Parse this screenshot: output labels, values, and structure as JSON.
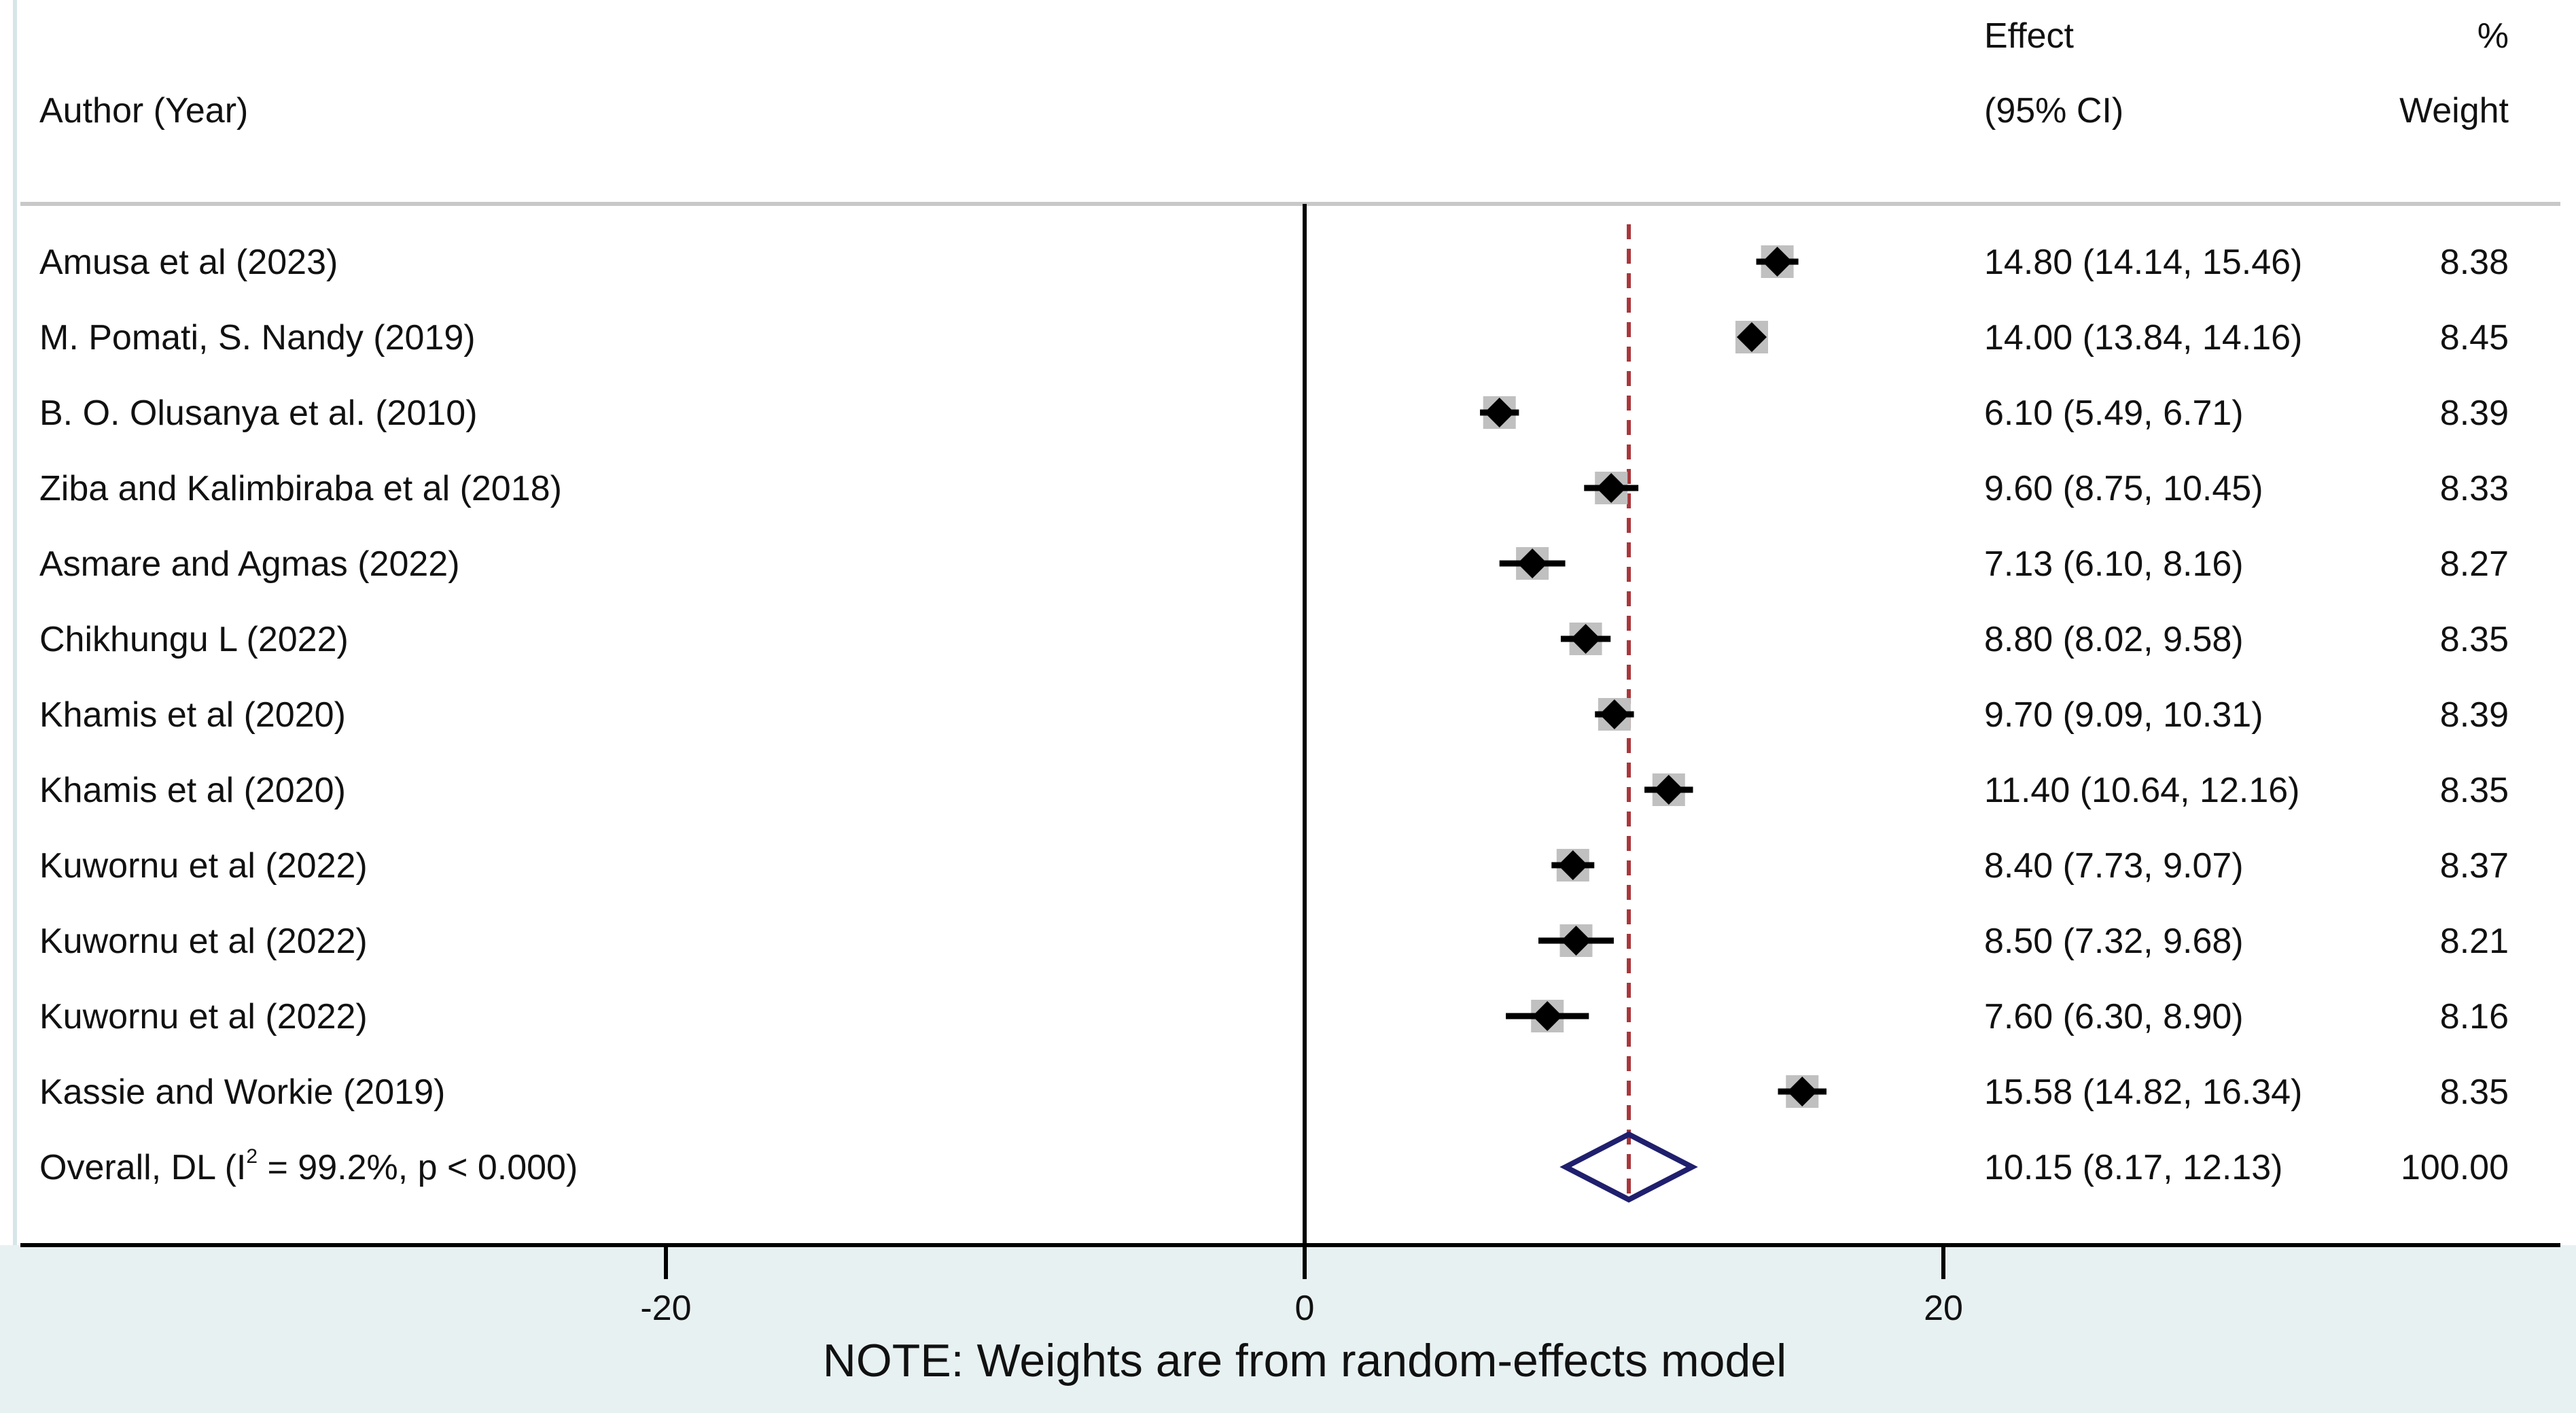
{
  "chart_data": {
    "type": "forest",
    "header": {
      "author": "Author (Year)",
      "effect_line1": "Effect",
      "effect_line2": "(95% CI)",
      "weight_line1": "%",
      "weight_line2": "Weight"
    },
    "studies": [
      {
        "label": "Amusa et al (2023)",
        "effect": 14.8,
        "lo": 14.14,
        "hi": 15.46,
        "ci_text": "14.80 (14.14, 15.46)",
        "weight": "8.38"
      },
      {
        "label": "M. Pomati, S. Nandy (2019)",
        "effect": 14.0,
        "lo": 13.84,
        "hi": 14.16,
        "ci_text": "14.00 (13.84, 14.16)",
        "weight": "8.45"
      },
      {
        "label": "B. O. Olusanya et al. (2010)",
        "effect": 6.1,
        "lo": 5.49,
        "hi": 6.71,
        "ci_text": "6.10 (5.49, 6.71)",
        "weight": "8.39"
      },
      {
        "label": "Ziba and Kalimbiraba et al (2018)",
        "effect": 9.6,
        "lo": 8.75,
        "hi": 10.45,
        "ci_text": "9.60 (8.75, 10.45)",
        "weight": "8.33"
      },
      {
        "label": "Asmare and Agmas (2022)",
        "effect": 7.13,
        "lo": 6.1,
        "hi": 8.16,
        "ci_text": "7.13 (6.10, 8.16)",
        "weight": "8.27"
      },
      {
        "label": "Chikhungu L (2022)",
        "effect": 8.8,
        "lo": 8.02,
        "hi": 9.58,
        "ci_text": "8.80 (8.02, 9.58)",
        "weight": "8.35"
      },
      {
        "label": "Khamis et al (2020)",
        "effect": 9.7,
        "lo": 9.09,
        "hi": 10.31,
        "ci_text": "9.70 (9.09, 10.31)",
        "weight": "8.39"
      },
      {
        "label": "Khamis et al (2020)",
        "effect": 11.4,
        "lo": 10.64,
        "hi": 12.16,
        "ci_text": "11.40 (10.64, 12.16)",
        "weight": "8.35"
      },
      {
        "label": "Kuwornu et al (2022)",
        "effect": 8.4,
        "lo": 7.73,
        "hi": 9.07,
        "ci_text": "8.40 (7.73, 9.07)",
        "weight": "8.37"
      },
      {
        "label": "Kuwornu et al (2022)",
        "effect": 8.5,
        "lo": 7.32,
        "hi": 9.68,
        "ci_text": "8.50 (7.32, 9.68)",
        "weight": "8.21"
      },
      {
        "label": "Kuwornu et al (2022)",
        "effect": 7.6,
        "lo": 6.3,
        "hi": 8.9,
        "ci_text": "7.60 (6.30, 8.90)",
        "weight": "8.16"
      },
      {
        "label": "Kassie and Workie (2019)",
        "effect": 15.58,
        "lo": 14.82,
        "hi": 16.34,
        "ci_text": "15.58 (14.82, 16.34)",
        "weight": "8.35"
      }
    ],
    "overall": {
      "label_prefix": "Overall, DL (I",
      "label_sup": "2",
      "label_suffix": " = 99.2%, p < 0.000)",
      "effect": 10.15,
      "lo": 8.17,
      "hi": 12.13,
      "ci_text": "10.15 (8.17, 12.13)",
      "weight": "100.00"
    },
    "xaxis": {
      "ticks": [
        -20,
        0,
        20
      ],
      "tick_labels": [
        "-20",
        "0",
        "20"
      ],
      "range": [
        -40,
        40
      ]
    },
    "null_line": 0,
    "note": "NOTE: Weights are from random-effects model",
    "colors": {
      "marker": "#000000",
      "weight_box": "#c0c0c0",
      "overall_line": "#a8363a",
      "diamond": "#1f1f6e",
      "footer_bg": "#e8f1f2",
      "divider": "#c8c8c8"
    }
  }
}
